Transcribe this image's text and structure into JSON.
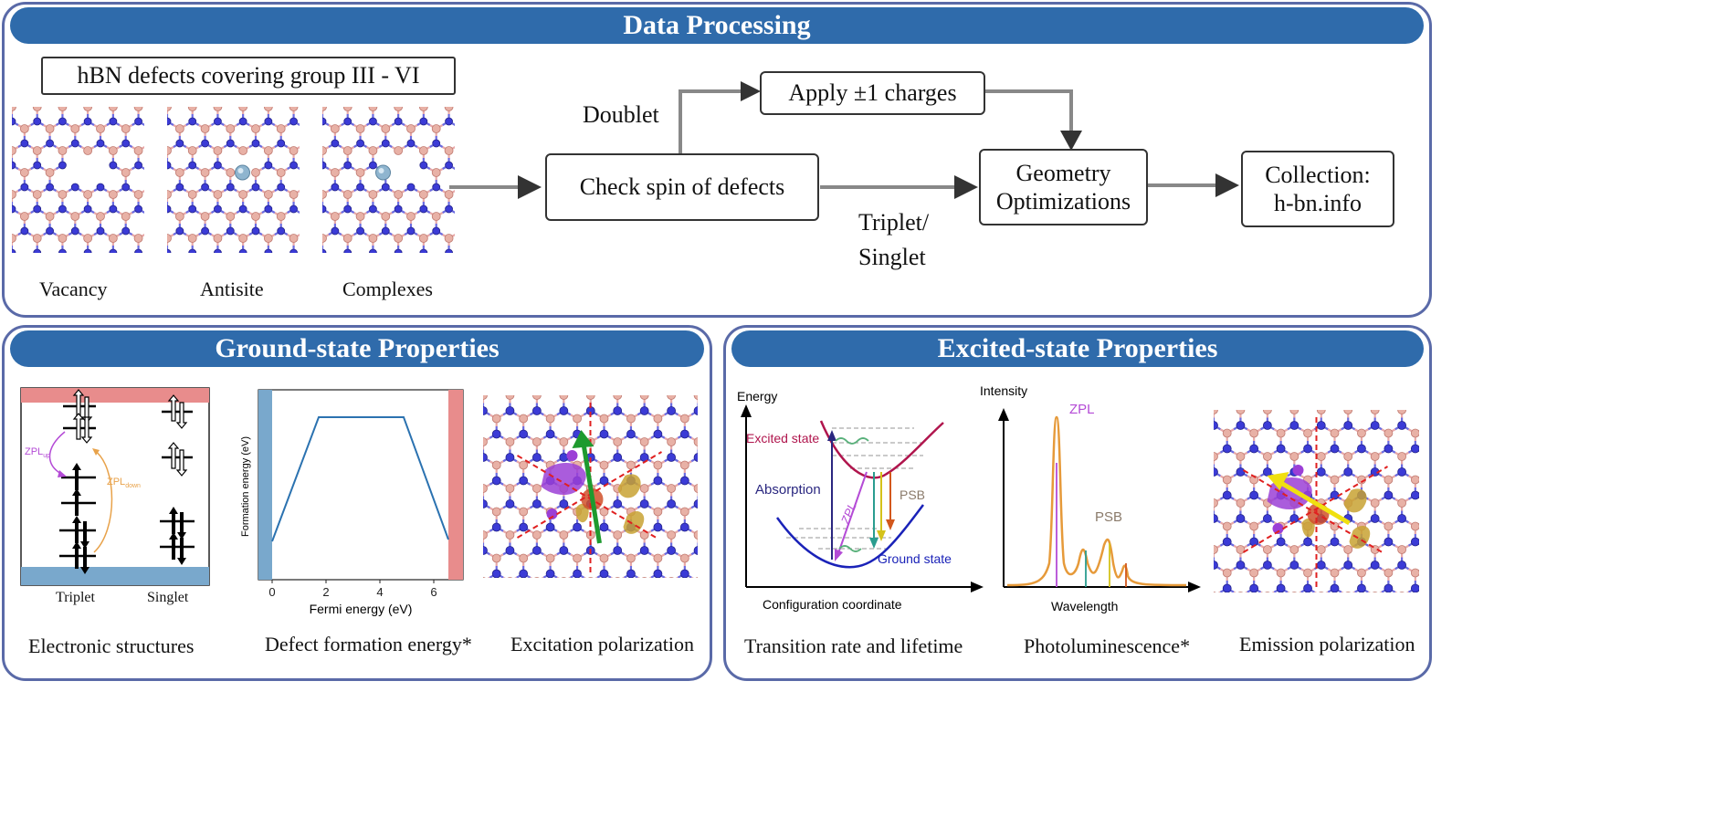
{
  "data_processing": {
    "title": "Data Processing",
    "source_box": "hBN defects covering group III - VI",
    "structures": [
      "Vacancy",
      "Antisite",
      "Complexes"
    ],
    "check_spin": "Check spin of defects",
    "doublet": "Doublet",
    "triplet_singlet": [
      "Triplet/",
      "Singlet"
    ],
    "charges": "Apply ±1 charges",
    "geometry": [
      "Geometry",
      "Optimizations"
    ],
    "collection": [
      "Collection:",
      "h-bn.info"
    ]
  },
  "ground_state": {
    "title": "Ground-state Properties",
    "electronic": {
      "caption": "Electronic structures",
      "columns": [
        "Triplet",
        "Singlet"
      ],
      "zpl_up": "ZPLup",
      "zpl_down": "ZPLdown"
    },
    "formation": {
      "caption": "Defect formation energy*",
      "xlabel": "Fermi energy (eV)",
      "ylabel": "Formation energy (eV)",
      "xticks": [
        "0",
        "2",
        "4",
        "6"
      ]
    },
    "excitation": {
      "caption": "Excitation polarization"
    }
  },
  "excited_state": {
    "title": "Excited-state Properties",
    "transition": {
      "caption": "Transition rate and lifetime",
      "ylabel": "Energy",
      "xlabel": "Configuration coordinate",
      "excited_state": "Excited state",
      "ground_state": "Ground state",
      "absorption": "Absorption",
      "zpl": "ZPL",
      "psb": "PSB"
    },
    "pl": {
      "caption": "Photoluminescence*",
      "ylabel": "Intensity",
      "xlabel": "Wavelength",
      "zpl": "ZPL",
      "psb": "PSB"
    },
    "emission": {
      "caption": "Emission polarization"
    }
  }
}
